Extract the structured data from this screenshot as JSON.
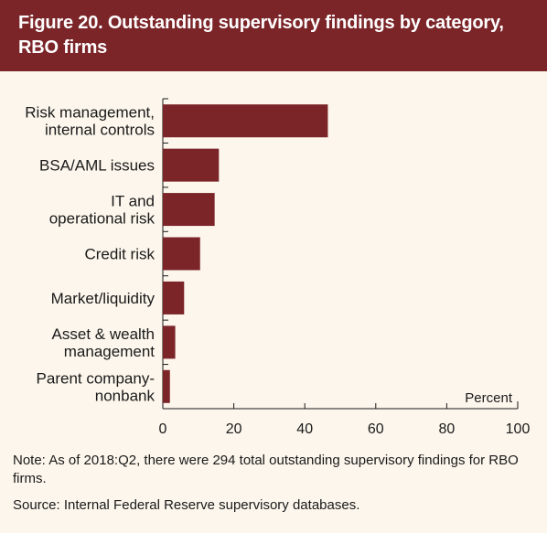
{
  "header": {
    "title": "Figure 20. Outstanding supervisory findings by category, RBO firms"
  },
  "colors": {
    "header_bg": "#7b2529",
    "bar": "#7b2529",
    "background": "#fcf6ec"
  },
  "chart_data": {
    "type": "bar",
    "orientation": "horizontal",
    "categories": [
      [
        "Risk management,",
        "internal controls"
      ],
      [
        "BSA/AML issues"
      ],
      [
        "IT and",
        "operational risk"
      ],
      [
        "Credit risk"
      ],
      [
        "Market/liquidity"
      ],
      [
        "Asset & wealth",
        "management"
      ],
      [
        "Parent company-",
        "nonbank"
      ]
    ],
    "values": [
      46.5,
      15.8,
      14.6,
      10.5,
      6.0,
      3.5,
      2.0
    ],
    "xlabel": "Percent",
    "xlim": [
      0,
      100
    ],
    "xticks": [
      0,
      20,
      40,
      60,
      80,
      100
    ],
    "grid": false
  },
  "footer": {
    "note": "Note: As of 2018:Q2, there were 294 total outstanding supervisory findings for RBO firms.",
    "source": "Source: Internal Federal Reserve supervisory databases."
  }
}
